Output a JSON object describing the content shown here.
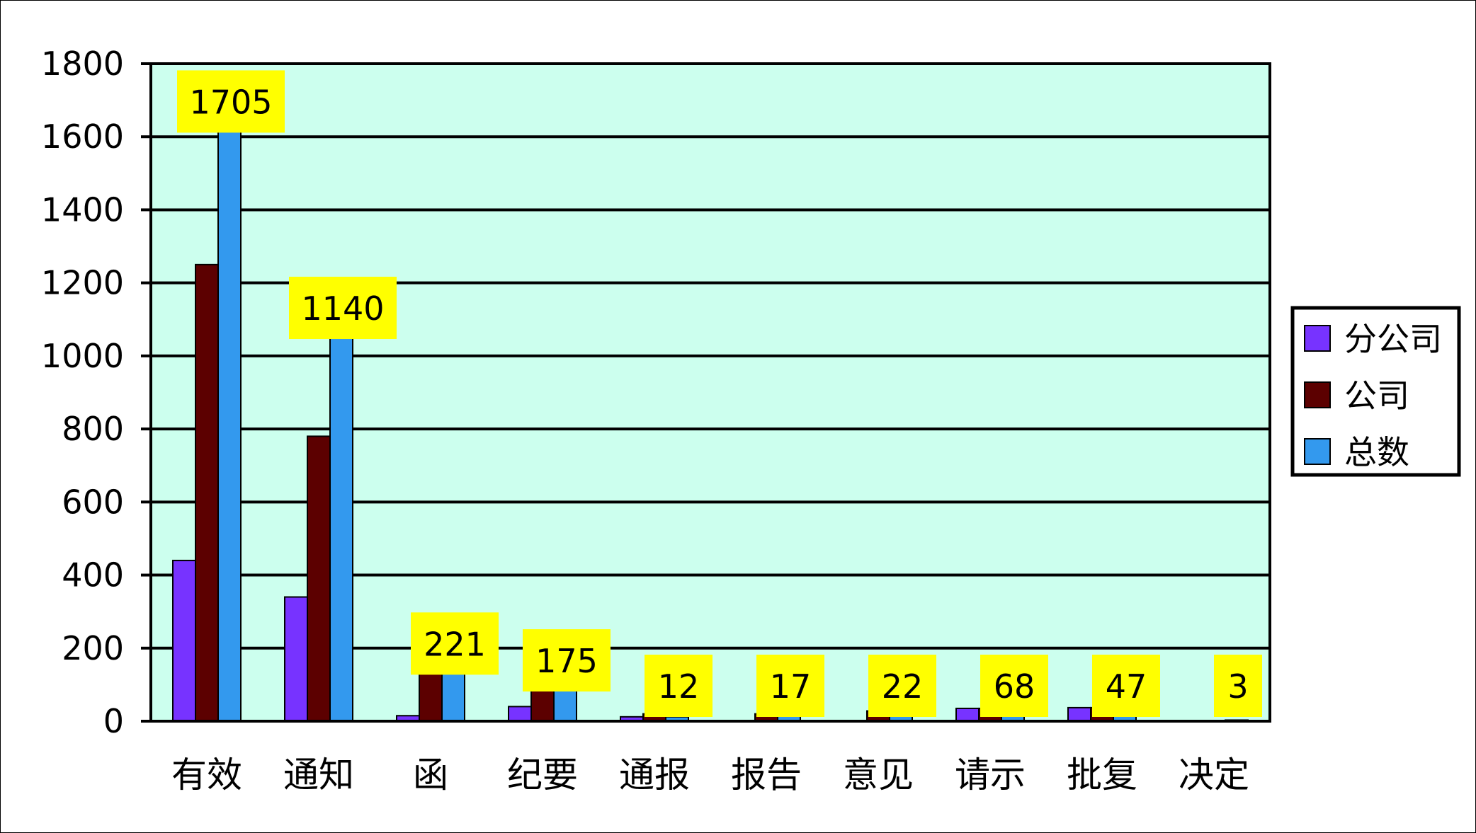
{
  "chart_data": {
    "type": "bar",
    "categories": [
      "有效",
      "通知",
      "函",
      "纪要",
      "通报",
      "报告",
      "意见",
      "请示",
      "批复",
      "决定"
    ],
    "series": [
      {
        "name": "分公司",
        "color": "#7733ff",
        "values": [
          440,
          340,
          15,
          40,
          12,
          0,
          0,
          35,
          37,
          0
        ]
      },
      {
        "name": "公司",
        "color": "#5c0000",
        "values": [
          1250,
          780,
          192,
          128,
          20,
          20,
          28,
          35,
          37,
          0
        ]
      },
      {
        "name": "总数",
        "color": "#3399ee",
        "values": [
          1705,
          1140,
          221,
          175,
          12,
          17,
          22,
          68,
          47,
          3
        ]
      }
    ],
    "data_labels": [
      "1705",
      "1140",
      "221",
      "175",
      "12",
      "17",
      "22",
      "68",
      "47",
      "3"
    ],
    "ylim": [
      0,
      1800
    ],
    "yticks": [
      "0",
      "200",
      "400",
      "600",
      "800",
      "1000",
      "1200",
      "1400",
      "1600",
      "1800"
    ],
    "grid": true,
    "legend_position": "right",
    "colors": {
      "plot_background": "#ccffee",
      "label_background": "#ffff00",
      "grid": "#000000"
    }
  }
}
